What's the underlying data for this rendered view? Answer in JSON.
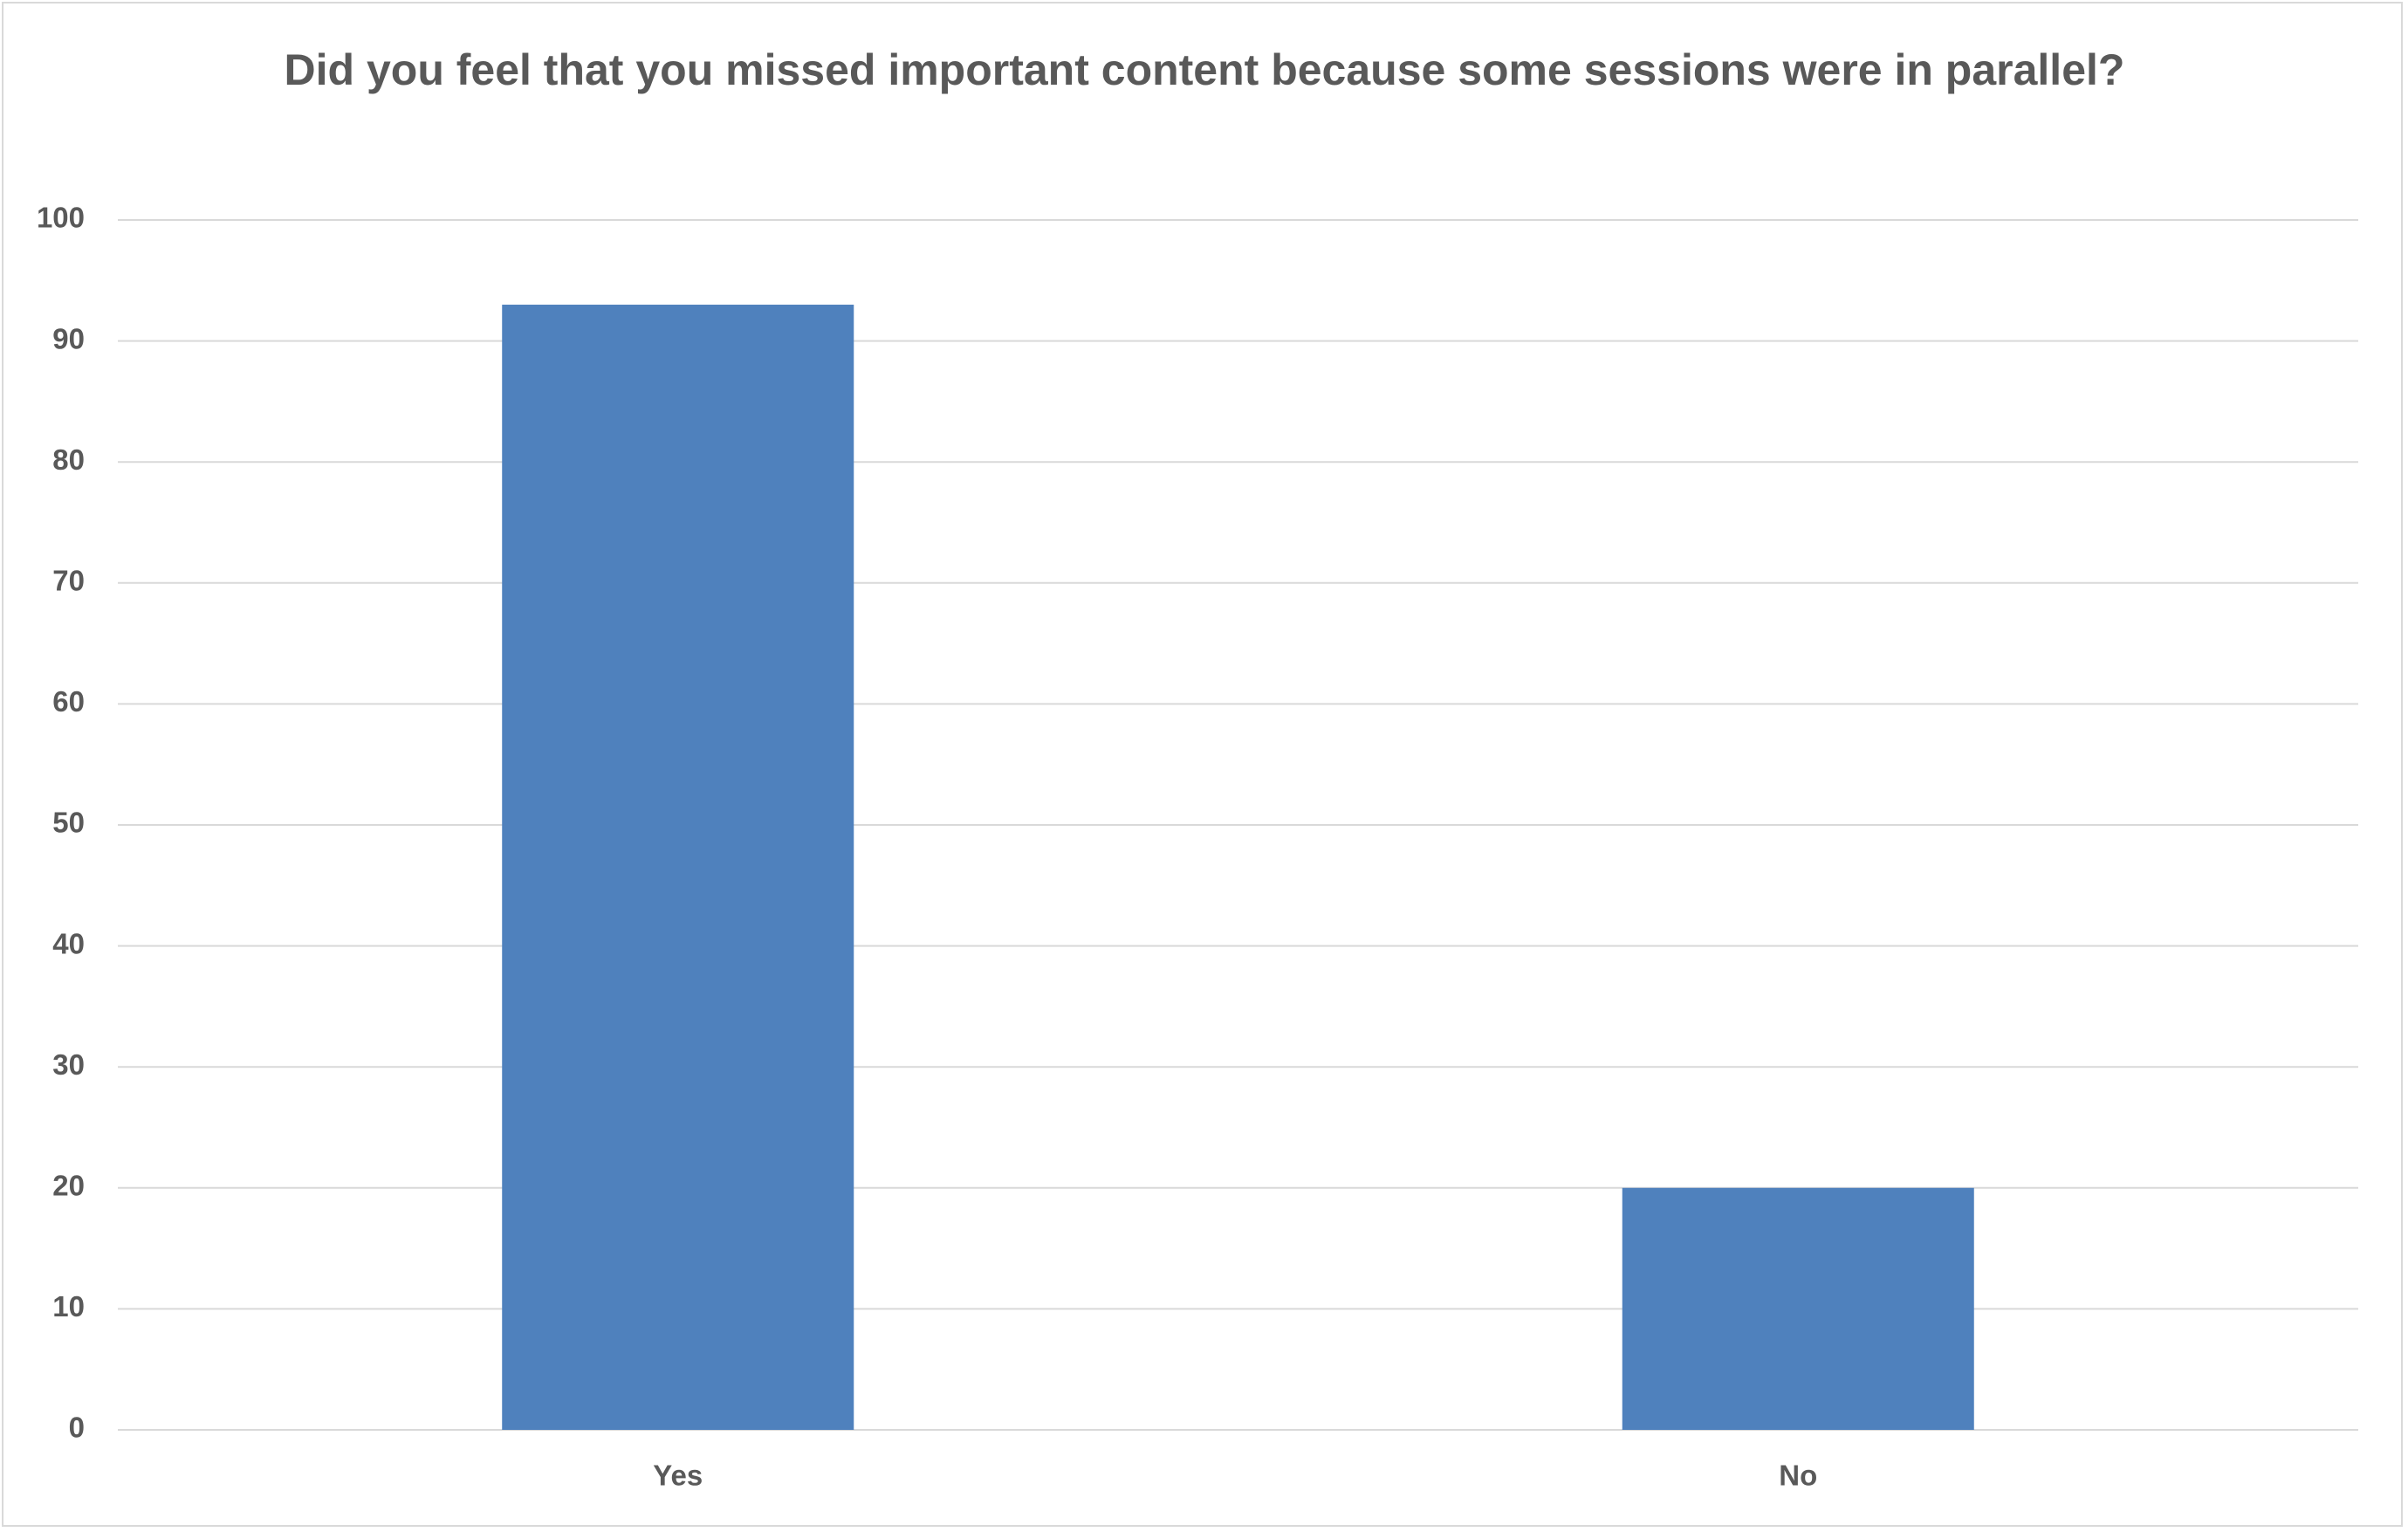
{
  "chart_data": {
    "type": "bar",
    "title": "Did you feel that you missed important content because some sessions were in parallel?",
    "categories": [
      "Yes",
      "No"
    ],
    "values": [
      93,
      20
    ],
    "color": "#4f81bd",
    "ylim": [
      0,
      100
    ],
    "yticks": [
      0,
      10,
      20,
      30,
      40,
      50,
      60,
      70,
      80,
      90,
      100
    ],
    "grid": true
  }
}
